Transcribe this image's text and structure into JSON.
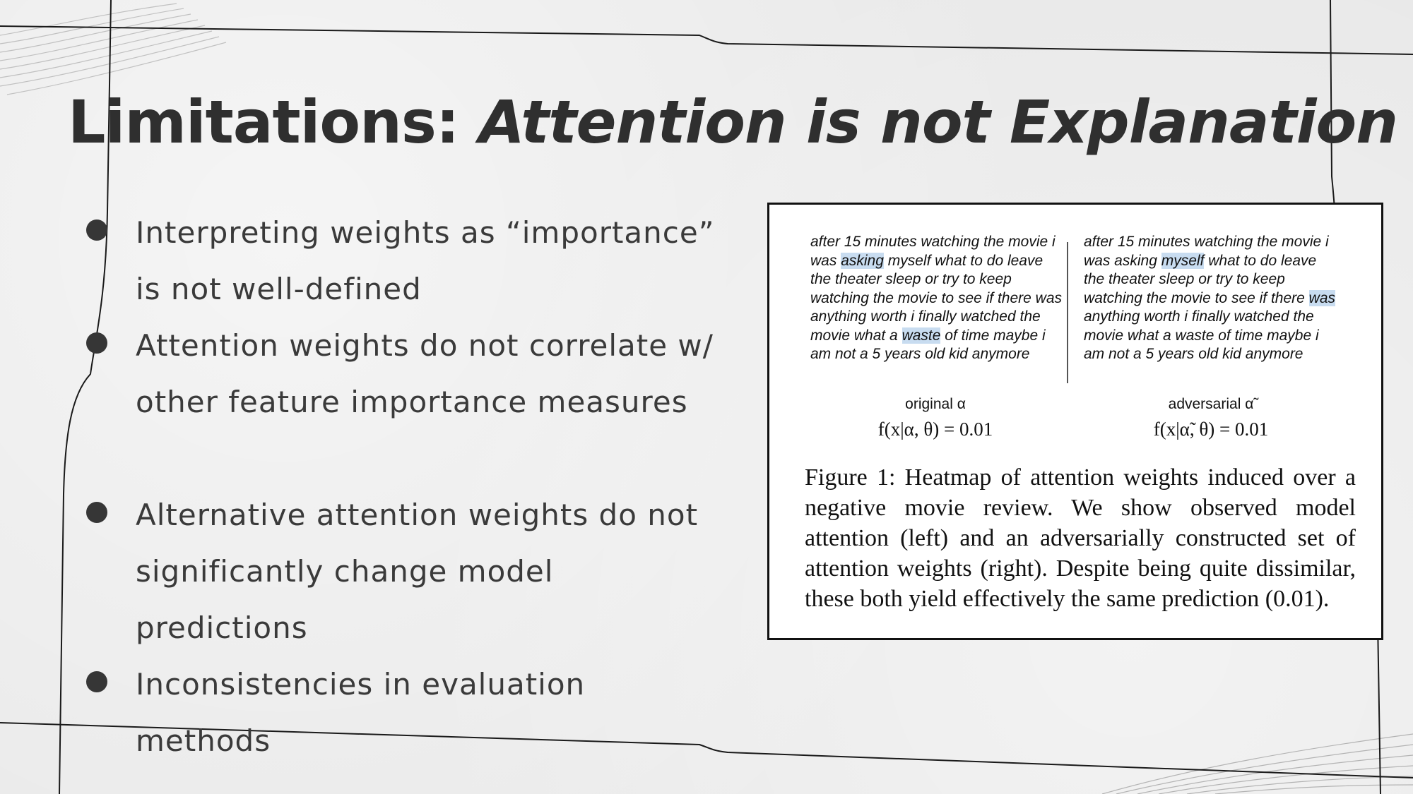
{
  "slide": {
    "title_plain": "Limitations: ",
    "title_italic": "Attention is not Explanation",
    "bullets": [
      {
        "text": "Interpreting weights as “importance” is not well-defined"
      },
      {
        "text": "Attention weights do not correlate w/ other feature importance measures"
      },
      {
        "text": "Alternative attention weights do not significantly change model predictions"
      },
      {
        "text": "Inconsistencies in evaluation methods"
      }
    ]
  },
  "figure": {
    "left_panel": {
      "t1": "after 15 minutes watching the movie i was ",
      "h1": "asking",
      "t2": " myself what to do leave the theater sleep or try to keep watching the movie to see if there was anything worth i finally watched the movie what a ",
      "h2": "waste",
      "t3": " of time maybe i am not a 5 years old kid anymore"
    },
    "right_panel": {
      "t1": "after 15 minutes watching the movie i was asking ",
      "h1": "myself",
      "t2": " what to do leave the theater sleep or try to keep watching the movie to see if there ",
      "h2": "was",
      "t3": " anything worth i finally watched the movie what a waste of time maybe i am not a 5 years old kid anymore"
    },
    "left_label": "original α",
    "right_label": "adversarial α̃",
    "left_formula": "f(x|α, θ) = 0.01",
    "right_formula": "f(x|α̃, θ) = 0.01",
    "caption": "Figure 1: Heatmap of attention weights induced over a negative movie review. We show observed model attention (left) and an adversarially constructed set of attention weights (right). Despite being quite dissimilar, these both yield effectively the same prediction (0.01)."
  }
}
